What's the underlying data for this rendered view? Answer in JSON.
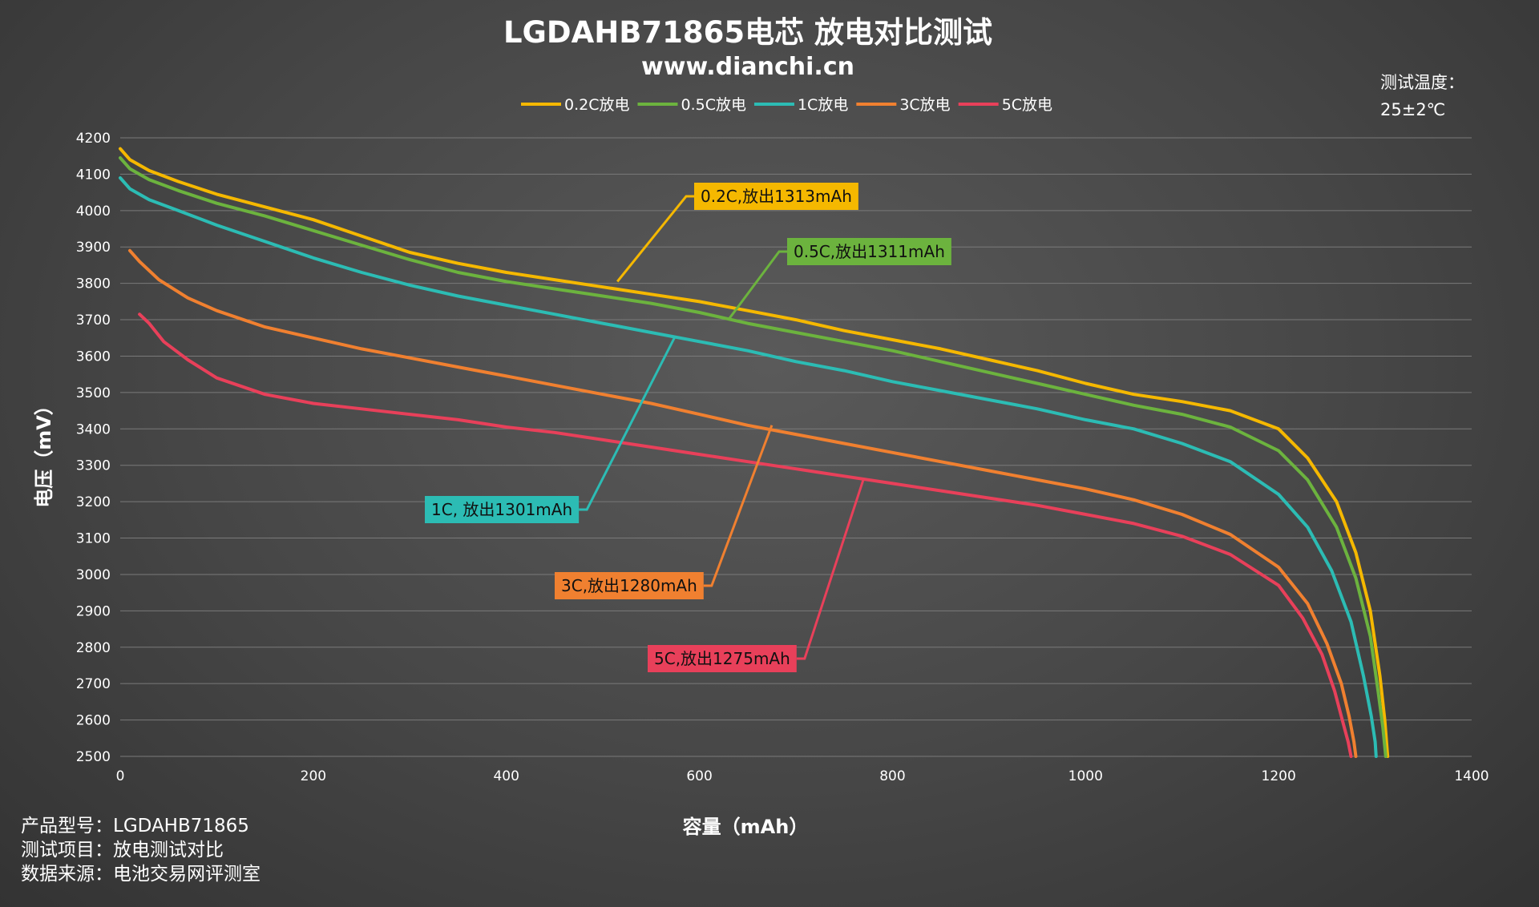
{
  "chart_data": {
    "type": "line",
    "title": "LGDAHB71865电芯 放电对比测试",
    "subtitle": "www.dianchi.cn",
    "xlabel": "容量（mAh）",
    "ylabel": "电压（mV）",
    "xlim": [
      0,
      1400
    ],
    "ylim": [
      2500,
      4200
    ],
    "xticks": [
      0,
      200,
      400,
      600,
      800,
      1000,
      1200,
      1400
    ],
    "yticks": [
      2500,
      2600,
      2700,
      2800,
      2900,
      3000,
      3100,
      3200,
      3300,
      3400,
      3500,
      3600,
      3700,
      3800,
      3900,
      4000,
      4100,
      4200
    ],
    "grid": "horizontal",
    "legend_position": "top",
    "temperature_label": "测试温度：",
    "temperature_value": "25±2℃",
    "series": [
      {
        "name": "0.2C放电",
        "color": "#f5b800",
        "x": [
          0,
          10,
          30,
          60,
          100,
          150,
          200,
          250,
          300,
          350,
          400,
          450,
          500,
          550,
          600,
          650,
          700,
          750,
          800,
          850,
          900,
          950,
          1000,
          1050,
          1100,
          1150,
          1200,
          1230,
          1260,
          1280,
          1295,
          1305,
          1310,
          1313
        ],
        "y": [
          4170,
          4140,
          4110,
          4080,
          4045,
          4010,
          3975,
          3930,
          3885,
          3855,
          3830,
          3810,
          3790,
          3770,
          3750,
          3725,
          3700,
          3670,
          3645,
          3620,
          3590,
          3560,
          3525,
          3495,
          3475,
          3450,
          3400,
          3320,
          3200,
          3060,
          2900,
          2720,
          2600,
          2500
        ]
      },
      {
        "name": "0.5C放电",
        "color": "#6cb33e",
        "x": [
          0,
          10,
          30,
          60,
          100,
          150,
          200,
          250,
          300,
          350,
          400,
          450,
          500,
          550,
          600,
          650,
          700,
          750,
          800,
          850,
          900,
          950,
          1000,
          1050,
          1100,
          1150,
          1200,
          1230,
          1260,
          1280,
          1295,
          1303,
          1308,
          1311
        ],
        "y": [
          4145,
          4115,
          4085,
          4055,
          4020,
          3985,
          3945,
          3905,
          3865,
          3830,
          3805,
          3785,
          3765,
          3745,
          3720,
          3690,
          3665,
          3640,
          3615,
          3585,
          3555,
          3525,
          3495,
          3465,
          3440,
          3405,
          3340,
          3260,
          3130,
          2990,
          2830,
          2680,
          2580,
          2500
        ]
      },
      {
        "name": "1C放电",
        "color": "#2cbcb4",
        "x": [
          0,
          10,
          30,
          60,
          100,
          150,
          200,
          250,
          300,
          350,
          400,
          450,
          500,
          550,
          600,
          650,
          700,
          750,
          800,
          850,
          900,
          950,
          1000,
          1050,
          1100,
          1150,
          1200,
          1230,
          1255,
          1275,
          1288,
          1296,
          1300,
          1301
        ],
        "y": [
          4090,
          4060,
          4030,
          4000,
          3960,
          3915,
          3870,
          3830,
          3795,
          3765,
          3740,
          3715,
          3690,
          3665,
          3640,
          3615,
          3585,
          3560,
          3530,
          3505,
          3480,
          3455,
          3425,
          3400,
          3360,
          3310,
          3220,
          3130,
          3010,
          2870,
          2720,
          2610,
          2540,
          2500
        ]
      },
      {
        "name": "3C放电",
        "color": "#f08030",
        "x": [
          10,
          20,
          40,
          70,
          100,
          150,
          200,
          250,
          300,
          350,
          400,
          450,
          500,
          550,
          600,
          650,
          700,
          750,
          800,
          850,
          900,
          950,
          1000,
          1050,
          1100,
          1150,
          1200,
          1230,
          1250,
          1265,
          1273,
          1278,
          1280
        ],
        "y": [
          3890,
          3860,
          3810,
          3760,
          3725,
          3680,
          3650,
          3620,
          3595,
          3570,
          3545,
          3520,
          3495,
          3470,
          3440,
          3410,
          3385,
          3360,
          3335,
          3310,
          3285,
          3260,
          3235,
          3205,
          3165,
          3110,
          3020,
          2920,
          2810,
          2700,
          2610,
          2540,
          2500
        ]
      },
      {
        "name": "5C放电",
        "color": "#e8405a",
        "x": [
          20,
          30,
          45,
          70,
          100,
          150,
          200,
          250,
          300,
          350,
          400,
          450,
          500,
          550,
          600,
          650,
          700,
          750,
          800,
          850,
          900,
          950,
          1000,
          1050,
          1100,
          1150,
          1200,
          1225,
          1245,
          1258,
          1266,
          1272,
          1275
        ],
        "y": [
          3715,
          3690,
          3640,
          3590,
          3540,
          3495,
          3470,
          3455,
          3440,
          3425,
          3405,
          3390,
          3370,
          3350,
          3330,
          3310,
          3290,
          3270,
          3250,
          3230,
          3210,
          3190,
          3165,
          3140,
          3105,
          3055,
          2970,
          2880,
          2780,
          2680,
          2600,
          2540,
          2500
        ]
      }
    ],
    "annotations": [
      {
        "text": "0.2C,放出1313mAh",
        "series": 0,
        "at": [
          515,
          3805
        ],
        "box_color": "#f5b800",
        "text_color": "#111111"
      },
      {
        "text": "0.5C,放出1311mAh",
        "series": 1,
        "at": [
          630,
          3700
        ],
        "box_color": "#6cb33e",
        "text_color": "#111111"
      },
      {
        "text": "1C, 放出1301mAh",
        "series": 2,
        "at": [
          575,
          3655
        ],
        "box_color": "#2cbcb4",
        "text_color": "#111111"
      },
      {
        "text": "3C,放出1280mAh",
        "series": 3,
        "at": [
          675,
          3410
        ],
        "box_color": "#f08030",
        "text_color": "#111111"
      },
      {
        "text": "5C,放出1275mAh",
        "series": 4,
        "at": [
          770,
          3262
        ],
        "box_color": "#e8405a",
        "text_color": "#111111"
      }
    ]
  },
  "info": {
    "model": "产品型号：LGDAHB71865",
    "test_item": "测试项目：放电测试对比",
    "source": "数据来源：电池交易网评测室"
  }
}
